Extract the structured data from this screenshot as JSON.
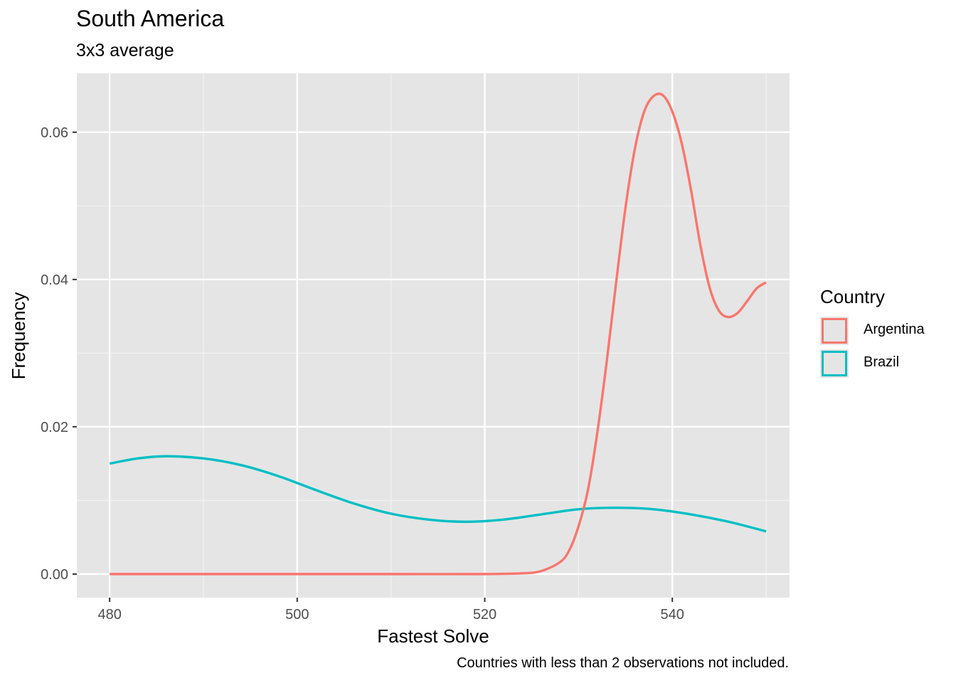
{
  "chart_data": {
    "type": "line",
    "title": "South America",
    "subtitle": "3x3 average",
    "xlabel": "Fastest Solve",
    "ylabel": "Frequency",
    "caption": "Countries with less than 2 observations not included.",
    "xlim": [
      476.5,
      552.5
    ],
    "ylim": [
      -0.0032,
      0.068
    ],
    "xticks": [
      480,
      500,
      520,
      540
    ],
    "xtick_labels": [
      "480",
      "500",
      "520",
      "540"
    ],
    "yticks": [
      0,
      0.02,
      0.04,
      0.06
    ],
    "ytick_labels": [
      "0.00",
      "0.02",
      "0.04",
      "0.06"
    ],
    "grid": true,
    "legend": {
      "title": "Country",
      "position": "right"
    },
    "series": [
      {
        "name": "Argentina",
        "color": "#F8766D",
        "x": [
          480,
          490,
          500,
          510,
          520,
          524,
          526,
          528,
          529,
          530,
          531,
          532,
          533,
          534,
          535,
          536,
          537,
          538,
          539,
          540,
          541,
          542,
          543,
          544,
          545,
          546,
          547,
          548,
          549,
          550
        ],
        "y": [
          0,
          0,
          0,
          0,
          0,
          0.0001,
          0.0004,
          0.0016,
          0.0032,
          0.0065,
          0.0114,
          0.0192,
          0.0288,
          0.0395,
          0.0497,
          0.0577,
          0.0628,
          0.0649,
          0.065,
          0.0628,
          0.0585,
          0.0521,
          0.0446,
          0.0388,
          0.0357,
          0.0349,
          0.0355,
          0.0371,
          0.0388,
          0.0396
        ]
      },
      {
        "name": "Brazil",
        "color": "#00BFC4",
        "x": [
          480,
          483,
          486,
          490,
          494,
          498,
          502,
          506,
          510,
          514,
          518,
          522,
          526,
          530,
          534,
          538,
          542,
          546,
          550
        ],
        "y": [
          0.015,
          0.0157,
          0.016,
          0.0157,
          0.0148,
          0.0133,
          0.0114,
          0.0096,
          0.0082,
          0.0074,
          0.0071,
          0.0074,
          0.0081,
          0.0088,
          0.009,
          0.0088,
          0.0081,
          0.0071,
          0.0058
        ]
      }
    ]
  }
}
